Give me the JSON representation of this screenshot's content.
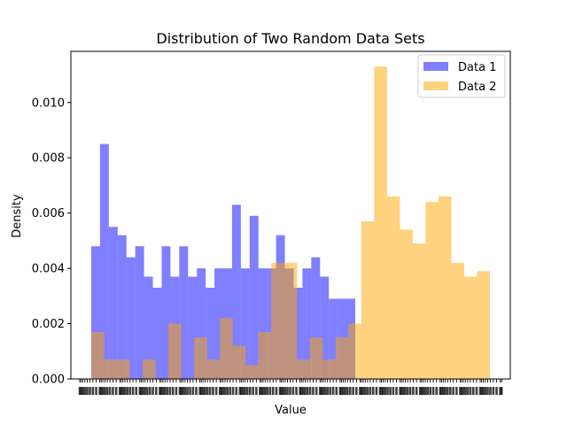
{
  "chart_data": {
    "type": "histogram",
    "title": "Distribution of Two Random Data Sets",
    "xlabel": "Value",
    "ylabel": "Density",
    "ylim": [
      0,
      0.01185
    ],
    "yticks": [
      0.0,
      0.002,
      0.004,
      0.006,
      0.008,
      0.01
    ],
    "ytick_labels": [
      "0.000",
      "0.002",
      "0.004",
      "0.006",
      "0.008",
      "0.010"
    ],
    "grid": false,
    "legend_position": "top-right",
    "series": [
      {
        "name": "Data 1",
        "color": "#0000ff",
        "alpha": 0.5,
        "values": [
          0.0048,
          0.0085,
          0.0055,
          0.0052,
          0.0044,
          0.0048,
          0.0037,
          0.0033,
          0.0048,
          0.0037,
          0.0048,
          0.0037,
          0.004,
          0.0033,
          0.004,
          0.004,
          0.0063,
          0.004,
          0.0059,
          0.004,
          0.004,
          0.0052,
          0.004,
          0.0033,
          0.004,
          0.0044,
          0.0037,
          0.0029,
          0.0029,
          0.0029
        ]
      },
      {
        "name": "Data 2",
        "color": "#ffa500",
        "alpha": 0.5,
        "values": [
          0.0017,
          0.0007,
          0.0007,
          0.0,
          0.0007,
          0.0,
          0.002,
          0.0,
          0.0015,
          0.0007,
          0.0022,
          0.0012,
          0.0005,
          0.0017,
          0.0042,
          0.0042,
          0.0007,
          0.0015,
          0.0007,
          0.0015,
          0.002,
          0.0057,
          0.0113,
          0.0066,
          0.0054,
          0.0049,
          0.0064,
          0.0066,
          0.0042,
          0.0037,
          0.0039
        ]
      }
    ]
  }
}
